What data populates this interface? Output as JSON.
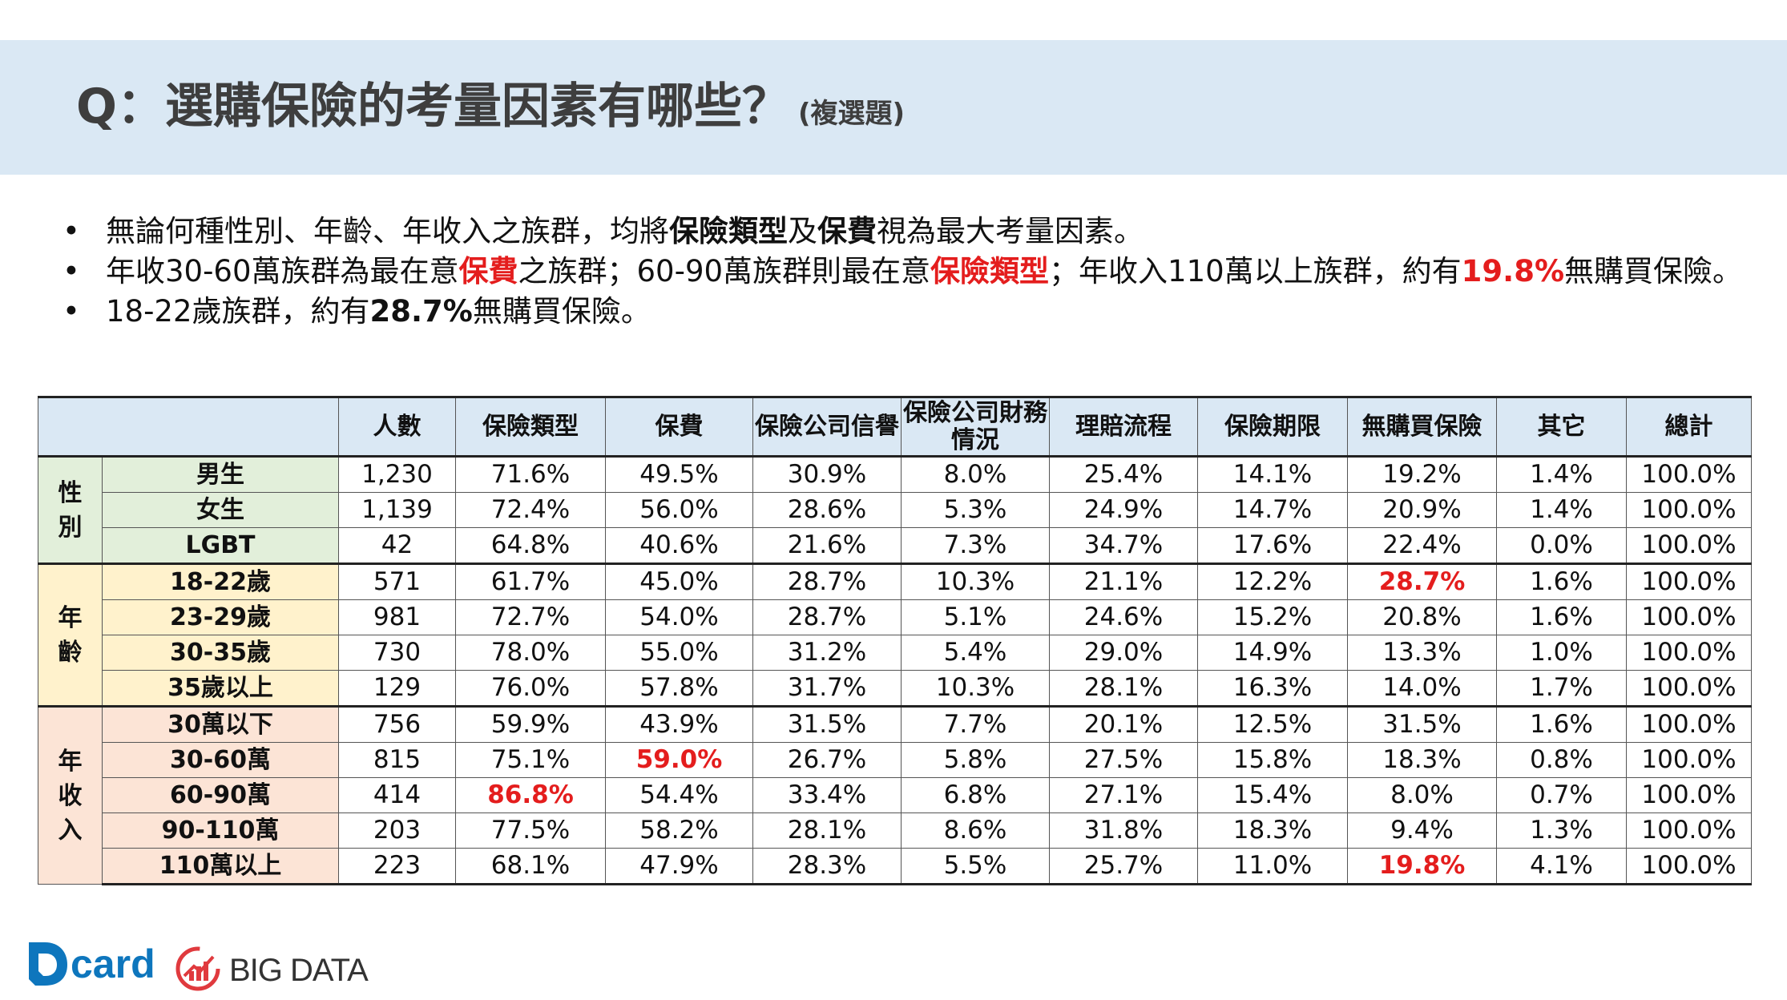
{
  "title": {
    "main": "Q：選購保險的考量因素有哪些？",
    "sub": "(複選題)"
  },
  "bullets": [
    [
      {
        "t": "無論何種性別、年齡、年收入之族群，均將",
        "s": ""
      },
      {
        "t": "保險類型",
        "s": "b"
      },
      {
        "t": "及",
        "s": ""
      },
      {
        "t": "保費",
        "s": "b"
      },
      {
        "t": "視為最大考量因素。",
        "s": ""
      }
    ],
    [
      {
        "t": "年收30-60萬族群為最在意",
        "s": ""
      },
      {
        "t": "保費",
        "s": "red"
      },
      {
        "t": "之族群；60-90萬族群則最在意",
        "s": ""
      },
      {
        "t": "保險類型",
        "s": "red"
      },
      {
        "t": "；年收入110萬以上族群，約有",
        "s": ""
      },
      {
        "t": "19.8%",
        "s": "red"
      },
      {
        "t": "無購買保險。",
        "s": ""
      }
    ],
    [
      {
        "t": "18-22歲族群，約有",
        "s": ""
      },
      {
        "t": "28.7%",
        "s": "b"
      },
      {
        "t": "無購買保險。",
        "s": ""
      }
    ]
  ],
  "table": {
    "headers": [
      "人數",
      "保險類型",
      "保費",
      "保險公司信譽",
      "保險公司財務情況",
      "理賠流程",
      "保險期限",
      "無購買保險",
      "其它",
      "總計"
    ],
    "groups": [
      {
        "label": "性別",
        "cls": "g-gender",
        "rows": [
          {
            "label": "男生",
            "values": [
              "1,230",
              "71.6%",
              "49.5%",
              "30.9%",
              "8.0%",
              "25.4%",
              "14.1%",
              "19.2%",
              "1.4%",
              "100.0%"
            ],
            "red": []
          },
          {
            "label": "女生",
            "values": [
              "1,139",
              "72.4%",
              "56.0%",
              "28.6%",
              "5.3%",
              "24.9%",
              "14.7%",
              "20.9%",
              "1.4%",
              "100.0%"
            ],
            "red": []
          },
          {
            "label": "LGBT",
            "values": [
              "42",
              "64.8%",
              "40.6%",
              "21.6%",
              "7.3%",
              "34.7%",
              "17.6%",
              "22.4%",
              "0.0%",
              "100.0%"
            ],
            "red": []
          }
        ]
      },
      {
        "label": "年齡",
        "cls": "g-age",
        "rows": [
          {
            "label": "18-22歲",
            "values": [
              "571",
              "61.7%",
              "45.0%",
              "28.7%",
              "10.3%",
              "21.1%",
              "12.2%",
              "28.7%",
              "1.6%",
              "100.0%"
            ],
            "red": [
              7
            ]
          },
          {
            "label": "23-29歲",
            "values": [
              "981",
              "72.7%",
              "54.0%",
              "28.7%",
              "5.1%",
              "24.6%",
              "15.2%",
              "20.8%",
              "1.6%",
              "100.0%"
            ],
            "red": []
          },
          {
            "label": "30-35歲",
            "values": [
              "730",
              "78.0%",
              "55.0%",
              "31.2%",
              "5.4%",
              "29.0%",
              "14.9%",
              "13.3%",
              "1.0%",
              "100.0%"
            ],
            "red": []
          },
          {
            "label": "35歲以上",
            "values": [
              "129",
              "76.0%",
              "57.8%",
              "31.7%",
              "10.3%",
              "28.1%",
              "16.3%",
              "14.0%",
              "1.7%",
              "100.0%"
            ],
            "red": []
          }
        ]
      },
      {
        "label": "年收入",
        "cls": "g-income",
        "rows": [
          {
            "label": "30萬以下",
            "values": [
              "756",
              "59.9%",
              "43.9%",
              "31.5%",
              "7.7%",
              "20.1%",
              "12.5%",
              "31.5%",
              "1.6%",
              "100.0%"
            ],
            "red": []
          },
          {
            "label": "30-60萬",
            "values": [
              "815",
              "75.1%",
              "59.0%",
              "26.7%",
              "5.8%",
              "27.5%",
              "15.8%",
              "18.3%",
              "0.8%",
              "100.0%"
            ],
            "red": [
              2
            ]
          },
          {
            "label": "60-90萬",
            "values": [
              "414",
              "86.8%",
              "54.4%",
              "33.4%",
              "6.8%",
              "27.1%",
              "15.4%",
              "8.0%",
              "0.7%",
              "100.0%"
            ],
            "red": [
              1
            ]
          },
          {
            "label": "90-110萬",
            "values": [
              "203",
              "77.5%",
              "58.2%",
              "28.1%",
              "8.6%",
              "31.8%",
              "18.3%",
              "9.4%",
              "1.3%",
              "100.0%"
            ],
            "red": []
          },
          {
            "label": "110萬以上",
            "values": [
              "223",
              "68.1%",
              "47.9%",
              "28.3%",
              "5.5%",
              "25.7%",
              "11.0%",
              "19.8%",
              "4.1%",
              "100.0%"
            ],
            "red": [
              7
            ]
          }
        ]
      }
    ]
  },
  "logos": {
    "dcard": "card",
    "bigdata": "BIG DATA"
  },
  "colors": {
    "accent_red": "#e41d1d",
    "header_band": "#dae8f4",
    "dcard_blue": "#0e76bd",
    "bigdata_red": "#e03a3e"
  }
}
